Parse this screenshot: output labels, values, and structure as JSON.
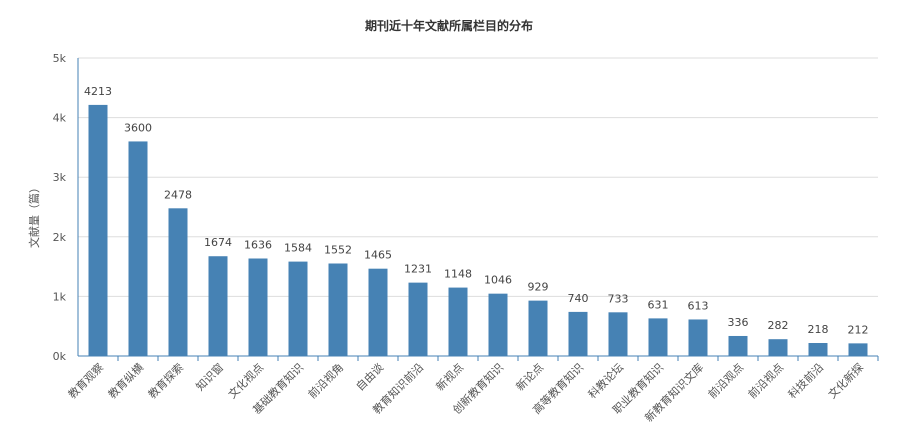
{
  "chart_data": {
    "type": "bar",
    "title": "期刊近十年文献所属栏目的分布",
    "xlabel": "",
    "ylabel": "文献量（篇）",
    "categories": [
      "教育观察",
      "教育纵横",
      "教育探索",
      "知识窗",
      "文化视点",
      "基础教育知识",
      "前沿视角",
      "自由谈",
      "教育知识前沿",
      "新视点",
      "创新教育知识",
      "新论点",
      "高等教育知识",
      "科教论坛",
      "职业教育知识",
      "新教育知识文库",
      "前沿观点",
      "前沿视点",
      "科技前沿",
      "文化新探"
    ],
    "values": [
      4213,
      3600,
      2478,
      1674,
      1636,
      1584,
      1552,
      1465,
      1231,
      1148,
      1046,
      929,
      740,
      733,
      631,
      613,
      336,
      282,
      218,
      212
    ],
    "ylim": [
      0,
      5000
    ],
    "yticks": [
      "0k",
      "1k",
      "2k",
      "3k",
      "4k",
      "5k"
    ],
    "grid": true,
    "legend": "none",
    "colors": {
      "bar": "#4682b4",
      "grid": "#dddddd",
      "axis": "#4682b4"
    }
  }
}
